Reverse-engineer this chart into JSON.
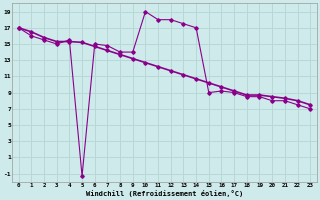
{
  "line1_x": [
    0,
    1,
    2,
    3,
    4,
    5,
    6,
    7,
    8,
    9,
    10,
    11,
    12,
    13,
    14,
    15,
    16,
    17,
    18,
    19,
    20,
    21,
    22,
    23
  ],
  "line1_y": [
    17,
    16,
    15.5,
    15,
    15.5,
    -1.3,
    15,
    14.8,
    14,
    14,
    19,
    18,
    18,
    17.5,
    17,
    9,
    9.2,
    9,
    8.5,
    8.5,
    8,
    8,
    7.5,
    7
  ],
  "line2_x": [
    0,
    1,
    2,
    3,
    4,
    5,
    6,
    7,
    8,
    9,
    10,
    11,
    12,
    13,
    14,
    15,
    16,
    17,
    18,
    19,
    20,
    21,
    22,
    23
  ],
  "line2_y": [
    17,
    16.5,
    15.8,
    15.3,
    15.3,
    15.2,
    14.7,
    14.2,
    13.7,
    13.2,
    12.7,
    12.2,
    11.7,
    11.2,
    10.7,
    10.2,
    9.7,
    9.2,
    8.7,
    8.7,
    8.5,
    8.3,
    8.0,
    7.5
  ],
  "line_color": "#8B008B",
  "bg_color": "#ceeaea",
  "grid_color": "#b8d8d8",
  "xlabel": "Windchill (Refroidissement éolien,°C)",
  "xlim": [
    -0.5,
    23.5
  ],
  "ylim": [
    -2,
    20
  ],
  "xticks": [
    0,
    1,
    2,
    3,
    4,
    5,
    6,
    7,
    8,
    9,
    10,
    11,
    12,
    13,
    14,
    15,
    16,
    17,
    18,
    19,
    20,
    21,
    22,
    23
  ],
  "yticks": [
    -1,
    1,
    3,
    5,
    7,
    9,
    11,
    13,
    15,
    17,
    19
  ]
}
